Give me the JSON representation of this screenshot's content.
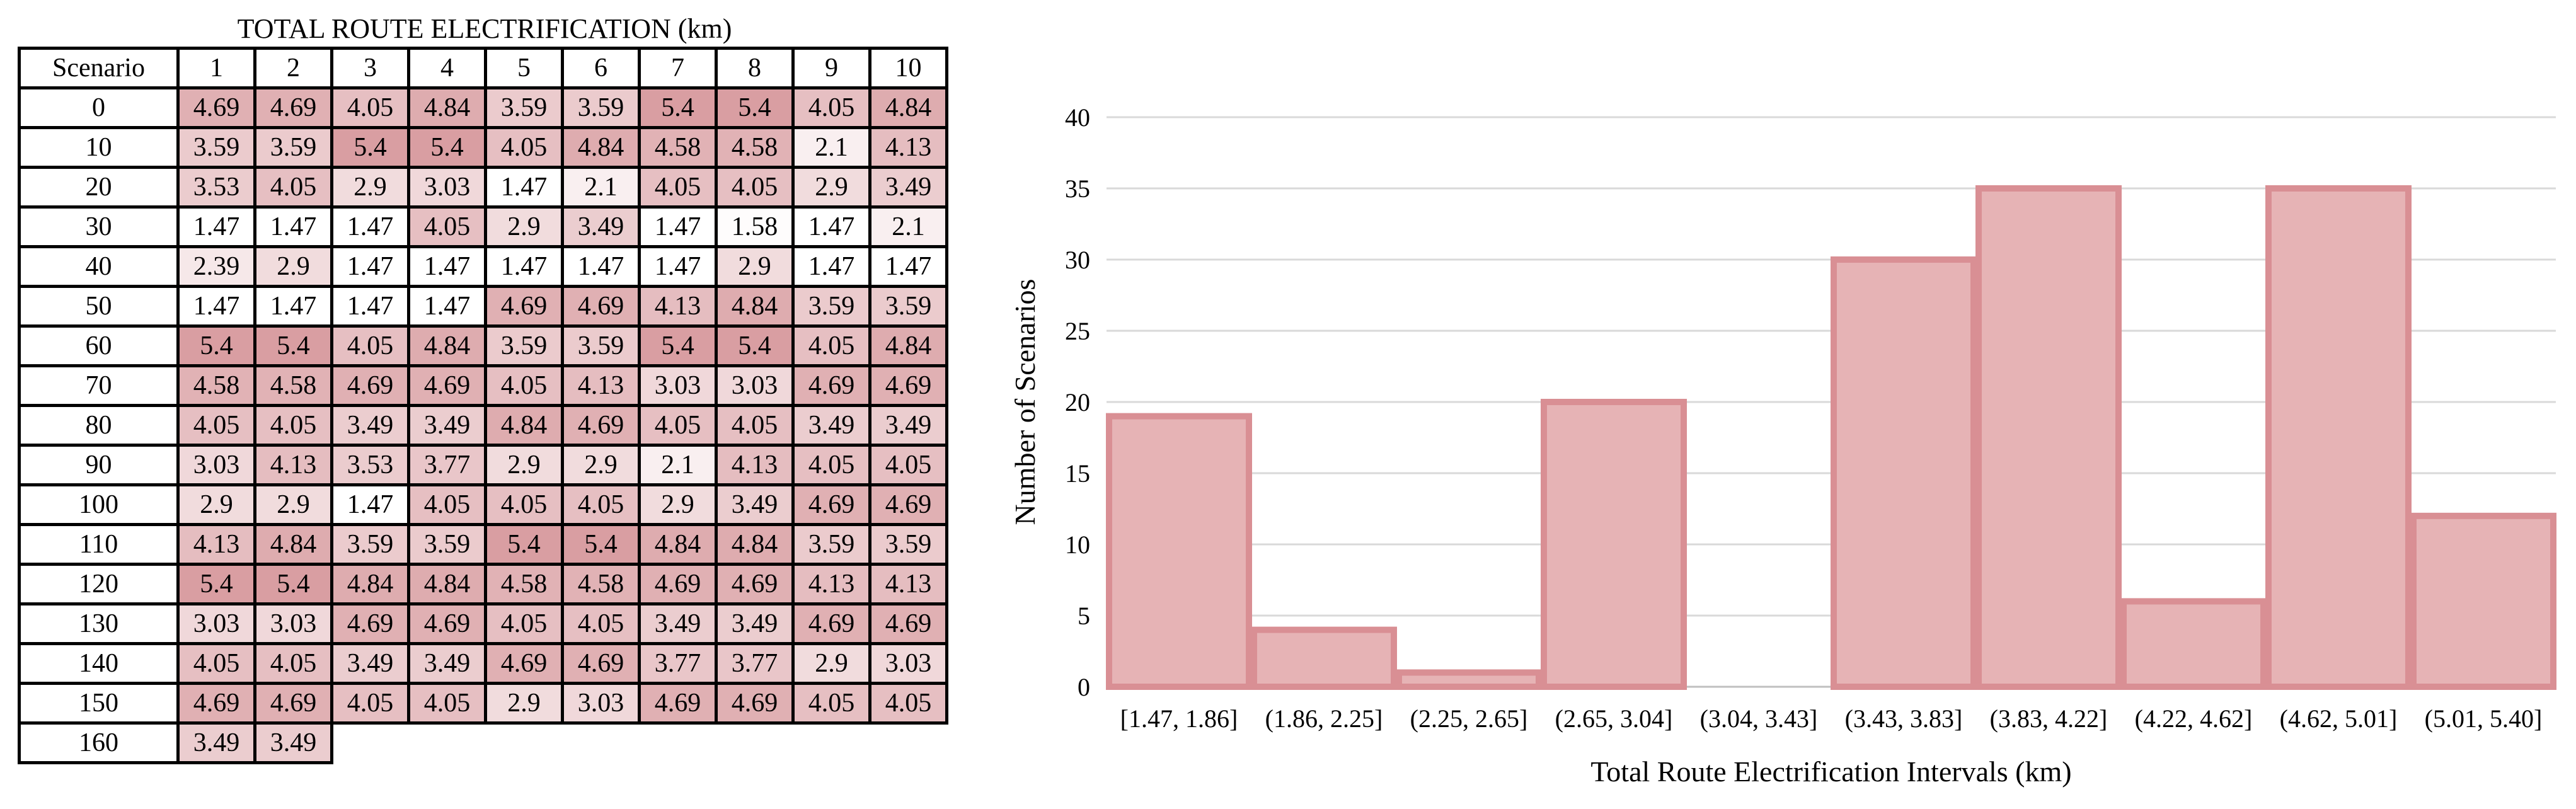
{
  "table": {
    "title": "TOTAL ROUTE ELECTRIFICATION (km)",
    "header_label": "Scenario",
    "columns": [
      "1",
      "2",
      "3",
      "4",
      "5",
      "6",
      "7",
      "8",
      "9",
      "10"
    ],
    "colors": {
      "low": "#ffffff",
      "high": "#d99ea2",
      "min_value": 1.47,
      "max_value": 5.4
    },
    "rows": [
      {
        "scenario": "0",
        "values": [
          "4.69",
          "4.69",
          "4.05",
          "4.84",
          "3.59",
          "3.59",
          "5.4",
          "5.4",
          "4.05",
          "4.84"
        ]
      },
      {
        "scenario": "10",
        "values": [
          "3.59",
          "3.59",
          "5.4",
          "5.4",
          "4.05",
          "4.84",
          "4.58",
          "4.58",
          "2.1",
          "4.13"
        ]
      },
      {
        "scenario": "20",
        "values": [
          "3.53",
          "4.05",
          "2.9",
          "3.03",
          "1.47",
          "2.1",
          "4.05",
          "4.05",
          "2.9",
          "3.49"
        ]
      },
      {
        "scenario": "30",
        "values": [
          "1.47",
          "1.47",
          "1.47",
          "4.05",
          "2.9",
          "3.49",
          "1.47",
          "1.58",
          "1.47",
          "2.1"
        ]
      },
      {
        "scenario": "40",
        "values": [
          "2.39",
          "2.9",
          "1.47",
          "1.47",
          "1.47",
          "1.47",
          "1.47",
          "2.9",
          "1.47",
          "1.47"
        ]
      },
      {
        "scenario": "50",
        "values": [
          "1.47",
          "1.47",
          "1.47",
          "1.47",
          "4.69",
          "4.69",
          "4.13",
          "4.84",
          "3.59",
          "3.59"
        ]
      },
      {
        "scenario": "60",
        "values": [
          "5.4",
          "5.4",
          "4.05",
          "4.84",
          "3.59",
          "3.59",
          "5.4",
          "5.4",
          "4.05",
          "4.84"
        ]
      },
      {
        "scenario": "70",
        "values": [
          "4.58",
          "4.58",
          "4.69",
          "4.69",
          "4.05",
          "4.13",
          "3.03",
          "3.03",
          "4.69",
          "4.69"
        ]
      },
      {
        "scenario": "80",
        "values": [
          "4.05",
          "4.05",
          "3.49",
          "3.49",
          "4.84",
          "4.69",
          "4.05",
          "4.05",
          "3.49",
          "3.49"
        ]
      },
      {
        "scenario": "90",
        "values": [
          "3.03",
          "4.13",
          "3.53",
          "3.77",
          "2.9",
          "2.9",
          "2.1",
          "4.13",
          "4.05",
          "4.05"
        ]
      },
      {
        "scenario": "100",
        "values": [
          "2.9",
          "2.9",
          "1.47",
          "4.05",
          "4.05",
          "4.05",
          "2.9",
          "3.49",
          "4.69",
          "4.69"
        ]
      },
      {
        "scenario": "110",
        "values": [
          "4.13",
          "4.84",
          "3.59",
          "3.59",
          "5.4",
          "5.4",
          "4.84",
          "4.84",
          "3.59",
          "3.59"
        ]
      },
      {
        "scenario": "120",
        "values": [
          "5.4",
          "5.4",
          "4.84",
          "4.84",
          "4.58",
          "4.58",
          "4.69",
          "4.69",
          "4.13",
          "4.13"
        ]
      },
      {
        "scenario": "130",
        "values": [
          "3.03",
          "3.03",
          "4.69",
          "4.69",
          "4.05",
          "4.05",
          "3.49",
          "3.49",
          "4.69",
          "4.69"
        ]
      },
      {
        "scenario": "140",
        "values": [
          "4.05",
          "4.05",
          "3.49",
          "3.49",
          "4.69",
          "4.69",
          "3.77",
          "3.77",
          "2.9",
          "3.03"
        ]
      },
      {
        "scenario": "150",
        "values": [
          "4.69",
          "4.69",
          "4.05",
          "4.05",
          "2.9",
          "3.03",
          "4.69",
          "4.69",
          "4.05",
          "4.05"
        ]
      },
      {
        "scenario": "160",
        "values": [
          "3.49",
          "3.49"
        ]
      }
    ]
  },
  "chart_data": {
    "type": "bar",
    "categories": [
      "[1.47, 1.86]",
      "(1.86, 2.25]",
      "(2.25, 2.65]",
      "(2.65, 3.04]",
      "(3.04, 3.43]",
      "(3.43, 3.83]",
      "(3.83, 4.22]",
      "(4.22, 4.62]",
      "(4.62, 5.01]",
      "(5.01, 5.40]"
    ],
    "values": [
      19,
      4,
      1,
      20,
      0,
      30,
      35,
      6,
      35,
      12
    ],
    "title": "",
    "xlabel": "Total Route Electrification Intervals (km)",
    "ylabel": "Number of Scenarios",
    "ylim": [
      0,
      40
    ],
    "yticks": [
      0,
      5,
      10,
      15,
      20,
      25,
      30,
      35,
      40
    ],
    "grid": true,
    "bar_fill": "#e6b3b5",
    "bar_stroke": "#d98f94",
    "grid_color": "#d9d9d9"
  }
}
